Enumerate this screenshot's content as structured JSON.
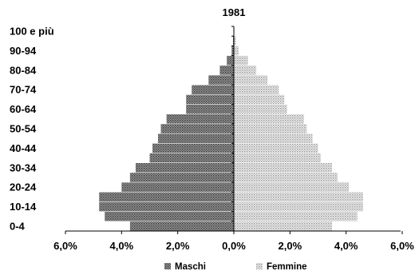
{
  "chart_data": {
    "type": "bar",
    "orientation": "horizontal-pyramid",
    "title": "1981",
    "xlabel": "",
    "ylabel": "",
    "xlim": [
      -6.0,
      6.0
    ],
    "x_ticks": [
      "6,0%",
      "4,0%",
      "2,0%",
      "0,0%",
      "2,0%",
      "4,0%",
      "6,0%"
    ],
    "y_tick_labels": [
      "100 e più",
      "90-94",
      "80-84",
      "70-74",
      "60-64",
      "50-54",
      "40-44",
      "30-34",
      "20-24",
      "10-14",
      "0-4"
    ],
    "categories": [
      "0-4",
      "5-9",
      "10-14",
      "15-19",
      "20-24",
      "25-29",
      "30-34",
      "35-39",
      "40-44",
      "45-49",
      "50-54",
      "55-59",
      "60-64",
      "65-69",
      "70-74",
      "75-79",
      "80-84",
      "85-89",
      "90-94",
      "95-99",
      "100 e più"
    ],
    "series": [
      {
        "name": "Maschi",
        "values": [
          3.7,
          4.6,
          4.8,
          4.8,
          4.0,
          3.7,
          3.5,
          3.0,
          2.9,
          2.7,
          2.6,
          2.4,
          1.7,
          1.7,
          1.5,
          0.9,
          0.5,
          0.25,
          0.08,
          0.03,
          0.01
        ]
      },
      {
        "name": "Femmine",
        "values": [
          3.5,
          4.4,
          4.6,
          4.6,
          4.1,
          3.7,
          3.5,
          3.1,
          3.0,
          2.8,
          2.6,
          2.5,
          1.9,
          1.8,
          1.6,
          1.2,
          0.8,
          0.5,
          0.17,
          0.07,
          0.02
        ]
      }
    ],
    "legend": {
      "position": "bottom",
      "items": [
        "Maschi",
        "Femmine"
      ]
    },
    "grid": false,
    "colors": {
      "Maschi": "#8c8c8c",
      "Femmine": "#d2d2d2"
    }
  }
}
